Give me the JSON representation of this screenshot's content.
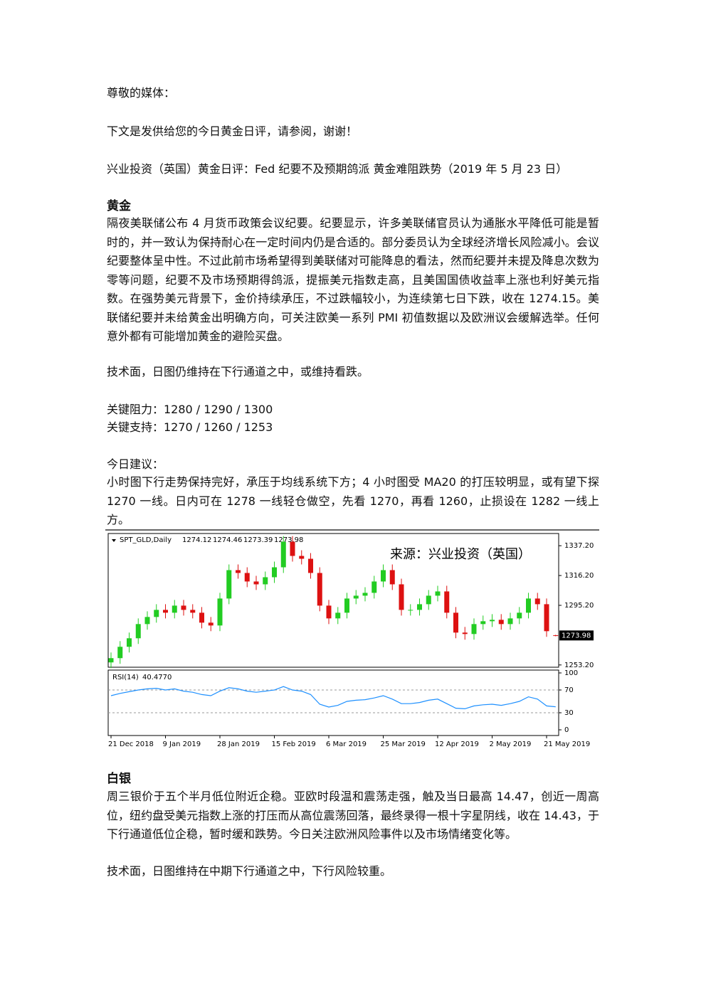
{
  "greeting": "尊敬的媒体：",
  "intro": "下文是发供给您的今日黄金日评，请参阅，谢谢！",
  "headline": "兴业投资（英国）黄金日评：Fed 纪要不及预期鸽派  黄金难阻跌势（2019 年 5 月 23 日）",
  "gold": {
    "heading": "黄金",
    "paragraph": "隔夜美联储公布 4 月货币政策会议纪要。纪要显示，许多美联储官员认为通胀水平降低可能是暂时的，并一致认为保持耐心在一定时间内仍是合适的。部分委员认为全球经济增长风险减小。会议纪要整体呈中性。不过此前市场希望得到美联储对可能降息的看法，然而纪要并未提及降息次数为零等问题，纪要不及市场预期得鸽派，提振美元指数走高，且美国国债收益率上涨也利好美元指数。在强势美元背景下，金价持续承压，不过跌幅较小，为连续第七日下跌，收在 1274.15。美联储纪要并未给黄金出明确方向，可关注欧美一系列 PMI 初值数据以及欧洲议会缓解选举。任何意外都有可能增加黄金的避险买盘。",
    "technical": "技术面，日图仍维持在下行通道之中，或维持看跌。",
    "resistance": "关键阻力：1280 / 1290 / 1300",
    "support": "关键支持：1270 / 1260 / 1253",
    "advice_heading": "今日建议：",
    "advice": "小时图下行走势保持完好，承压于均线系统下方；4 小时图受 MA20 的打压较明显，或有望下探 1270 一线。日内可在 1278 一线轻仓做空，先看 1270，再看 1260，止损设在 1282 一线上方。"
  },
  "chart_data": {
    "type": "candlestick",
    "title": "SPT_GLD,Daily",
    "annotation": "来源：兴业投资（英国）",
    "categories": [
      "21 Dec 2018",
      null,
      null,
      null,
      null,
      null,
      "9 Jan 2019",
      null,
      null,
      null,
      null,
      null,
      "28 Jan 2019",
      null,
      null,
      null,
      null,
      null,
      "15 Feb 2019",
      null,
      null,
      null,
      null,
      null,
      "6 Mar 2019",
      null,
      null,
      null,
      null,
      null,
      "25 Mar 2019",
      null,
      null,
      null,
      null,
      null,
      "12 Apr 2019",
      null,
      null,
      null,
      null,
      null,
      "2 May 2019",
      null,
      null,
      null,
      null,
      null,
      "21 May 2019",
      null
    ],
    "open": [
      1255,
      1258,
      1266,
      1272,
      1282,
      1287,
      1292,
      1290,
      1295,
      1292,
      1290,
      1283,
      1281,
      1300,
      1320,
      1318,
      1312,
      1310,
      1315,
      1322,
      1340,
      1330,
      1328,
      1318,
      1295,
      1286,
      1290,
      1300,
      1302,
      1304,
      1312,
      1320,
      1310,
      1292,
      1292,
      1296,
      1302,
      1305,
      1290,
      1276,
      1275,
      1282,
      1284,
      1285,
      1282,
      1286,
      1290,
      1300,
      1296,
      1274.12
    ],
    "high": [
      1262,
      1270,
      1276,
      1286,
      1291,
      1296,
      1296,
      1299,
      1299,
      1296,
      1294,
      1287,
      1304,
      1324,
      1324,
      1322,
      1316,
      1319,
      1326,
      1344,
      1344,
      1334,
      1332,
      1322,
      1299,
      1294,
      1304,
      1306,
      1308,
      1316,
      1324,
      1324,
      1314,
      1296,
      1300,
      1306,
      1309,
      1309,
      1294,
      1280,
      1286,
      1288,
      1289,
      1289,
      1290,
      1294,
      1304,
      1304,
      1300,
      1274.46
    ],
    "low": [
      1251,
      1254,
      1262,
      1268,
      1278,
      1283,
      1286,
      1286,
      1288,
      1286,
      1279,
      1277,
      1277,
      1296,
      1314,
      1308,
      1306,
      1306,
      1311,
      1318,
      1326,
      1324,
      1314,
      1291,
      1282,
      1282,
      1286,
      1296,
      1298,
      1300,
      1308,
      1306,
      1288,
      1288,
      1288,
      1292,
      1298,
      1286,
      1272,
      1271,
      1271,
      1278,
      1280,
      1278,
      1278,
      1282,
      1286,
      1292,
      1273,
      1273.39
    ],
    "close": [
      1258,
      1266,
      1272,
      1282,
      1287,
      1292,
      1290,
      1295,
      1292,
      1290,
      1283,
      1281,
      1300,
      1320,
      1318,
      1312,
      1310,
      1315,
      1322,
      1340,
      1330,
      1328,
      1318,
      1295,
      1286,
      1290,
      1300,
      1302,
      1304,
      1312,
      1320,
      1310,
      1292,
      1292,
      1296,
      1302,
      1305,
      1290,
      1276,
      1275,
      1282,
      1284,
      1285,
      1282,
      1286,
      1290,
      1300,
      1296,
      1277,
      1273.98
    ],
    "up_color": "#22cc22",
    "down_color": "#dd1111",
    "ylim": [
      1251.6,
      1345.8
    ],
    "yticks": [
      {
        "value": 1337.2,
        "label": "1337.20"
      },
      {
        "value": 1316.2,
        "label": "1316.20"
      },
      {
        "value": 1295.2,
        "label": "1295.20"
      },
      {
        "value": 1253.2,
        "label": "1253.20"
      }
    ],
    "rsi": {
      "name": "RSI(14)",
      "color": "#1e90ff",
      "values": [
        60,
        64,
        67,
        70,
        72,
        73,
        70,
        72,
        68,
        66,
        62,
        60,
        68,
        74,
        72,
        68,
        66,
        68,
        70,
        76,
        70,
        68,
        62,
        45,
        40,
        43,
        50,
        52,
        53,
        56,
        60,
        54,
        46,
        46,
        48,
        52,
        54,
        46,
        38,
        37,
        42,
        44,
        45,
        43,
        46,
        50,
        58,
        54,
        42,
        40.477
      ],
      "value_labels": [
        null,
        null,
        null,
        null,
        null,
        null,
        null,
        null,
        null,
        null,
        null,
        null,
        null,
        null,
        null,
        null,
        null,
        null,
        null,
        null,
        null,
        null,
        null,
        null,
        null,
        null,
        null,
        null,
        null,
        null,
        null,
        null,
        null,
        null,
        null,
        null,
        null,
        null,
        null,
        null,
        null,
        null,
        null,
        null,
        null,
        null,
        null,
        null,
        null,
        "40.4770"
      ],
      "ylim": [
        -10,
        105
      ],
      "yticks": [
        100,
        70,
        30,
        0
      ],
      "levels": [
        70,
        30
      ]
    }
  },
  "silver": {
    "heading": "白银",
    "paragraph": "周三银价于五个半月低位附近企稳。亚欧时段温和震荡走强，触及当日最高 14.47，创近一周高位，纽约盘受美元指数上涨的打压而从高位震荡回落，最终录得一根十字星阴线，收在 14.43，于下行通道低位企稳，暂时缓和跌势。今日关注欧洲风险事件以及市场情绪变化等。",
    "technical": "技术面，日图维持在中期下行通道之中，下行风险较重。"
  }
}
